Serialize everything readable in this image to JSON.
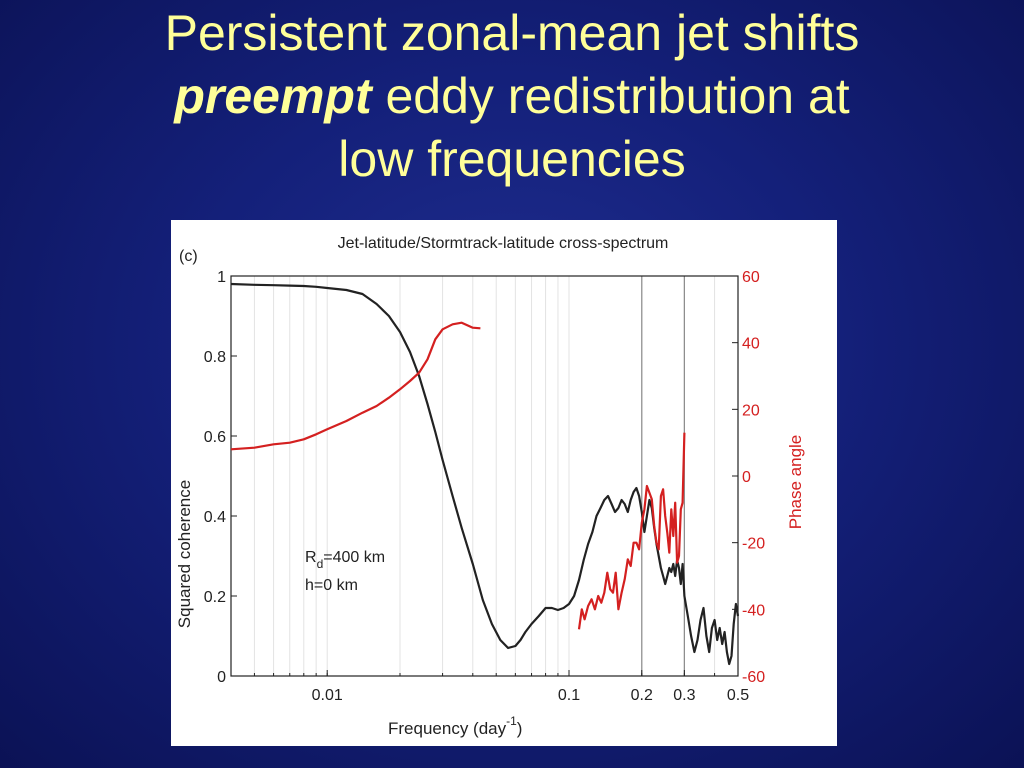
{
  "slide": {
    "title_line1": "Persistent zonal-mean jet shifts",
    "title_line2_emph": "preempt",
    "title_line2_rest": " eddy redistribution at",
    "title_line3": "low frequencies"
  },
  "colors": {
    "background": "#14207a",
    "title": "#ffff99",
    "coherence": "#222222",
    "phase": "#d42020"
  },
  "chart_data": {
    "type": "line",
    "panel_label": "(c)",
    "title": "Jet-latitude/Stormtrack-latitude cross-spectrum",
    "xlabel": "Frequency (day",
    "xlabel_sup": "-1",
    "xlabel_end": ")",
    "ylabel": "Squared coherence",
    "y2label": "Phase angle",
    "xscale": "log",
    "xlim": [
      0.004,
      0.5
    ],
    "ylim": [
      0,
      1
    ],
    "y2lim": [
      -60,
      60
    ],
    "xticks": [
      {
        "value": 0.01,
        "label": "0.01"
      },
      {
        "value": 0.1,
        "label": "0.1"
      },
      {
        "value": 0.2,
        "label": "0.2"
      },
      {
        "value": 0.3,
        "label": "0.3"
      },
      {
        "value": 0.5,
        "label": "0.5"
      }
    ],
    "yticks": [
      {
        "value": 0,
        "label": "0"
      },
      {
        "value": 0.2,
        "label": "0.2"
      },
      {
        "value": 0.4,
        "label": "0.4"
      },
      {
        "value": 0.6,
        "label": "0.6"
      },
      {
        "value": 0.8,
        "label": "0.8"
      },
      {
        "value": 1,
        "label": "1"
      }
    ],
    "y2ticks": [
      {
        "value": 60,
        "label": "60"
      },
      {
        "value": 40,
        "label": "40"
      },
      {
        "value": 20,
        "label": "20"
      },
      {
        "value": 0,
        "label": "0"
      },
      {
        "value": -20,
        "label": "-20"
      },
      {
        "value": -40,
        "label": "-40"
      },
      {
        "value": -60,
        "label": "-60"
      }
    ],
    "vlines": [
      0.2,
      0.3
    ],
    "annotation": {
      "r_main": "R",
      "r_sub": "d",
      "r_rest": "=400 km",
      "line2": "h=0 km"
    },
    "series": [
      {
        "axis": "left",
        "x": [
          0.004,
          0.005,
          0.006,
          0.007,
          0.008,
          0.009,
          0.01,
          0.012,
          0.014,
          0.016,
          0.018,
          0.02,
          0.022,
          0.024,
          0.026,
          0.028,
          0.03,
          0.033,
          0.036,
          0.04,
          0.044,
          0.048,
          0.052,
          0.056,
          0.06,
          0.063,
          0.066,
          0.07,
          0.075,
          0.08,
          0.085,
          0.09,
          0.095,
          0.1,
          0.105,
          0.11,
          0.115,
          0.12,
          0.125,
          0.13,
          0.135,
          0.14,
          0.145,
          0.15,
          0.155,
          0.16,
          0.165,
          0.17,
          0.175,
          0.18,
          0.185,
          0.19,
          0.195,
          0.2,
          0.205,
          0.21,
          0.215,
          0.22,
          0.225,
          0.23,
          0.235,
          0.24,
          0.245,
          0.25,
          0.255,
          0.26,
          0.265,
          0.27,
          0.275,
          0.28,
          0.285,
          0.29,
          0.295,
          0.3,
          0.31,
          0.32,
          0.33,
          0.34,
          0.35,
          0.36,
          0.37,
          0.38,
          0.39,
          0.4,
          0.41,
          0.42,
          0.43,
          0.44,
          0.45,
          0.46,
          0.47,
          0.48,
          0.49,
          0.5
        ],
        "y": [
          0.98,
          0.978,
          0.977,
          0.976,
          0.975,
          0.973,
          0.97,
          0.965,
          0.955,
          0.93,
          0.9,
          0.86,
          0.81,
          0.75,
          0.68,
          0.61,
          0.54,
          0.45,
          0.37,
          0.28,
          0.19,
          0.13,
          0.09,
          0.07,
          0.075,
          0.09,
          0.11,
          0.13,
          0.15,
          0.17,
          0.17,
          0.165,
          0.17,
          0.18,
          0.2,
          0.24,
          0.29,
          0.33,
          0.36,
          0.4,
          0.42,
          0.44,
          0.45,
          0.43,
          0.41,
          0.42,
          0.44,
          0.43,
          0.41,
          0.44,
          0.46,
          0.47,
          0.45,
          0.41,
          0.36,
          0.4,
          0.44,
          0.42,
          0.37,
          0.33,
          0.3,
          0.27,
          0.25,
          0.23,
          0.25,
          0.27,
          0.26,
          0.28,
          0.25,
          0.29,
          0.27,
          0.23,
          0.28,
          0.2,
          0.15,
          0.1,
          0.06,
          0.09,
          0.14,
          0.17,
          0.1,
          0.06,
          0.12,
          0.14,
          0.09,
          0.12,
          0.08,
          0.11,
          0.06,
          0.03,
          0.05,
          0.13,
          0.18,
          0.15
        ]
      },
      {
        "axis": "right",
        "x": [
          0.004,
          0.005,
          0.006,
          0.007,
          0.008,
          0.009,
          0.01,
          0.012,
          0.014,
          0.016,
          0.018,
          0.02,
          0.022,
          0.024,
          0.026,
          0.028,
          0.03,
          0.033,
          0.036,
          0.04,
          0.043
        ],
        "y": [
          8,
          8.5,
          9.5,
          10,
          11,
          12.5,
          14,
          16.5,
          19,
          21,
          23.5,
          26,
          28.5,
          31,
          35,
          41,
          44,
          45.5,
          46,
          44.5,
          44.3
        ]
      },
      {
        "axis": "right",
        "x": [
          0.11,
          0.113,
          0.116,
          0.12,
          0.124,
          0.128,
          0.132,
          0.136,
          0.14,
          0.144,
          0.148,
          0.152,
          0.156,
          0.16,
          0.165,
          0.17,
          0.175,
          0.18,
          0.185,
          0.19,
          0.195,
          0.2,
          0.205,
          0.21,
          0.215,
          0.22,
          0.225,
          0.23,
          0.235,
          0.24,
          0.245,
          0.25,
          0.255,
          0.26,
          0.265,
          0.27,
          0.275,
          0.28,
          0.285,
          0.29,
          0.295,
          0.3
        ],
        "y": [
          -46,
          -40,
          -43,
          -39,
          -37,
          -40,
          -36,
          -38,
          -35,
          -29,
          -34,
          -35,
          -29,
          -40,
          -35,
          -31,
          -25,
          -27,
          -20,
          -20,
          -22,
          -14,
          -10,
          -3,
          -5,
          -7,
          -15,
          -20,
          -22,
          -6,
          -4,
          -12,
          -17,
          -23,
          -10,
          -18,
          -8,
          -26,
          -24,
          -10,
          -8,
          13
        ]
      }
    ]
  }
}
